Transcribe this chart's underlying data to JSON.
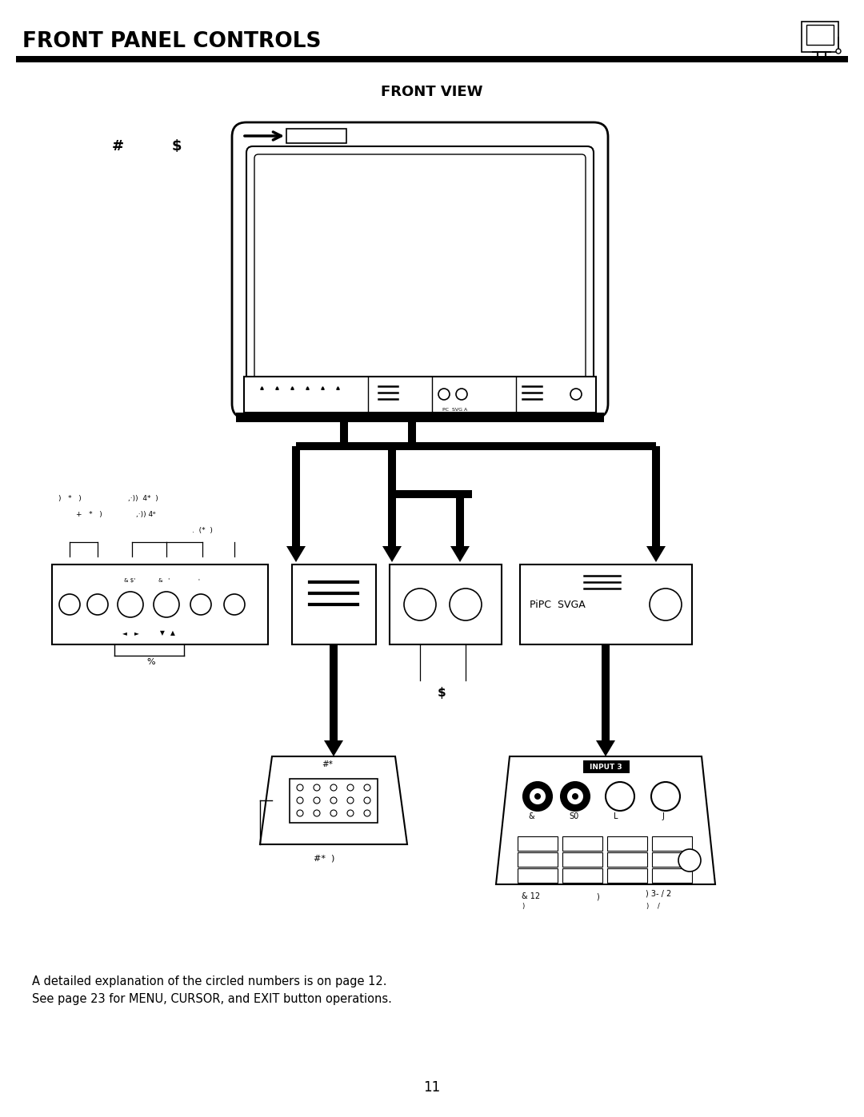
{
  "title": "FRONT PANEL CONTROLS",
  "subtitle": "FRONT VIEW",
  "page_number": "11",
  "footer_text1": "A detailed explanation of the circled numbers is on page 12.",
  "footer_text2": "See page 23 for MENU, CURSOR, and EXIT button operations.",
  "bg_color": "#ffffff",
  "line_color": "#000000",
  "text_color": "#000000",
  "label_hash": "#",
  "label_dollar": "$",
  "label_percent": "%",
  "pipc_svga_label": "PiPC  SVGA",
  "input3_label": "INPUT 3",
  "footnote1": "& 12",
  "footnote2": ")",
  "footnote3": ") 3- / 2",
  "label_S0": "S0",
  "label_L": "L",
  "label_J": "J",
  "label_amp": "&"
}
